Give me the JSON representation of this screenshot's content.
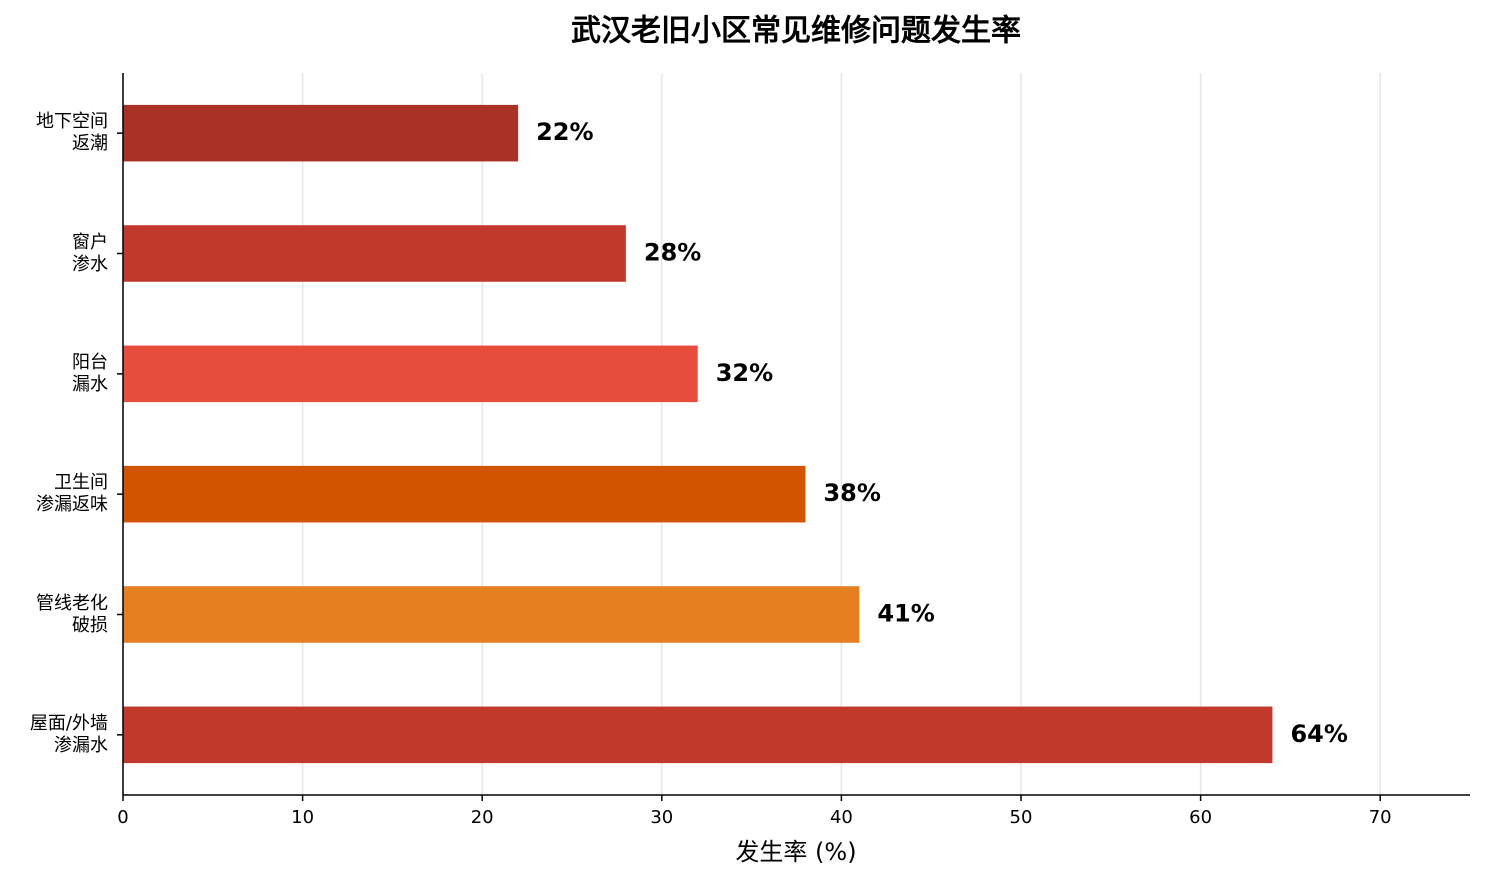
{
  "chart_data": {
    "type": "barh",
    "title": "武汉老旧小区常见维修问题发生率",
    "x_label": "发生率 (%)",
    "categories": [
      "地下空间\n返潮",
      "窗户\n渗水",
      "阳台\n漏水",
      "卫生间\n渗漏返味",
      "管线老化\n破损",
      "屋面/外墙\n渗漏水"
    ],
    "values": [
      22,
      28,
      32,
      38,
      41,
      64
    ],
    "value_labels": [
      "22%",
      "28%",
      "32%",
      "38%",
      "41%",
      "64%"
    ],
    "colors": [
      "#a93226",
      "#c0392b",
      "#e74c3c",
      "#d35400",
      "#e67e22",
      "#c0392b"
    ],
    "xlim": [
      0,
      75
    ],
    "xticks": [
      0,
      10,
      20,
      30,
      40,
      50,
      60,
      70
    ],
    "grid": true
  }
}
